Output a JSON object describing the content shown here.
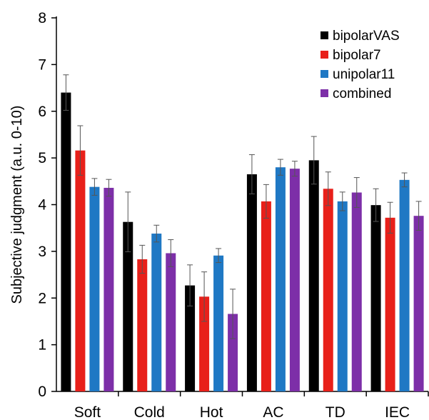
{
  "chart_data": {
    "type": "bar",
    "title": "",
    "xlabel": "",
    "ylabel": "Subjective judgment (a.u. 0-10)",
    "ylim": [
      0,
      8
    ],
    "yticks": [
      "0",
      "1",
      "2",
      "3",
      "4",
      "5",
      "6",
      "7",
      "8"
    ],
    "grid": false,
    "legend_position": "top-right",
    "categories": [
      "Soft",
      "Cold",
      "Hot",
      "AC",
      "TD",
      "IEC"
    ],
    "series": [
      {
        "name": "bipolarVAS",
        "color": "#000000",
        "values": [
          6.4,
          3.63,
          2.27,
          4.65,
          4.95,
          3.99
        ],
        "errors": [
          0.38,
          0.64,
          0.44,
          0.42,
          0.51,
          0.35
        ]
      },
      {
        "name": "bipolar7",
        "color": "#e8201a",
        "values": [
          5.16,
          2.83,
          2.03,
          4.07,
          4.34,
          3.72
        ],
        "errors": [
          0.53,
          0.3,
          0.53,
          0.36,
          0.36,
          0.33
        ]
      },
      {
        "name": "unipolar11",
        "color": "#1f78c4",
        "values": [
          4.38,
          3.38,
          2.91,
          4.8,
          4.07,
          4.53
        ],
        "errors": [
          0.18,
          0.18,
          0.15,
          0.17,
          0.2,
          0.15
        ]
      },
      {
        "name": "combined",
        "color": "#7d2fa8",
        "values": [
          4.36,
          2.96,
          1.66,
          4.77,
          4.26,
          3.76
        ],
        "errors": [
          0.18,
          0.29,
          0.53,
          0.16,
          0.32,
          0.31
        ]
      }
    ]
  }
}
